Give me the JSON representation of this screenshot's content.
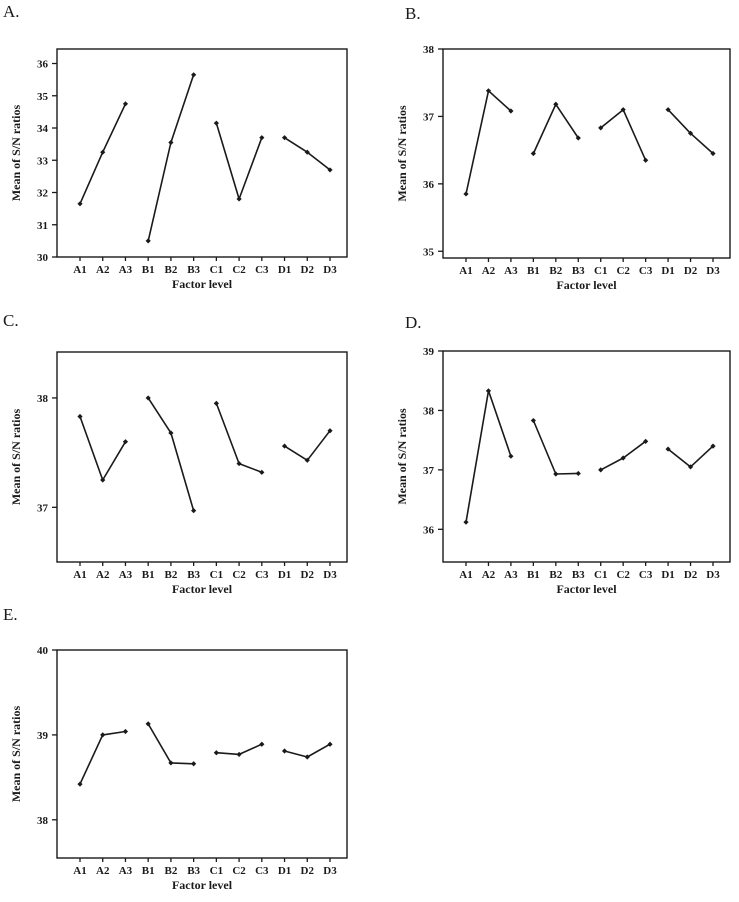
{
  "page": {
    "background_color": "#ffffff",
    "line_color": "#1a1a1a",
    "text_color": "#1a1a1a"
  },
  "chart_data": [
    {
      "panel_label": "A.",
      "type": "line",
      "title": "",
      "xlabel": "Factor level",
      "ylabel": "Mean of S/N ratios",
      "categories": [
        "A1",
        "A2",
        "A3",
        "B1",
        "B2",
        "B3",
        "C1",
        "C2",
        "C3",
        "D1",
        "D2",
        "D3"
      ],
      "series": [
        {
          "name": "Factor A",
          "levels": [
            "A1",
            "A2",
            "A3"
          ],
          "values": [
            31.65,
            33.25,
            34.75
          ]
        },
        {
          "name": "Factor B",
          "levels": [
            "B1",
            "B2",
            "B3"
          ],
          "values": [
            30.5,
            33.55,
            35.65
          ]
        },
        {
          "name": "Factor C",
          "levels": [
            "C1",
            "C2",
            "C3"
          ],
          "values": [
            34.15,
            31.8,
            33.7
          ]
        },
        {
          "name": "Factor D",
          "levels": [
            "D1",
            "D2",
            "D3"
          ],
          "values": [
            33.7,
            33.25,
            32.7
          ]
        }
      ],
      "yticks": [
        30,
        31,
        32,
        33,
        34,
        35,
        36
      ],
      "ylim": [
        30.0,
        36.45
      ],
      "grid": false,
      "legend": "none"
    },
    {
      "panel_label": "B.",
      "type": "line",
      "title": "",
      "xlabel": "Factor level",
      "ylabel": "Mean of S/N ratios",
      "categories": [
        "A1",
        "A2",
        "A3",
        "B1",
        "B2",
        "B3",
        "C1",
        "C2",
        "C3",
        "D1",
        "D2",
        "D3"
      ],
      "series": [
        {
          "name": "Factor A",
          "levels": [
            "A1",
            "A2",
            "A3"
          ],
          "values": [
            35.85,
            37.38,
            37.08
          ]
        },
        {
          "name": "Factor B",
          "levels": [
            "B1",
            "B2",
            "B3"
          ],
          "values": [
            36.45,
            37.18,
            36.68
          ]
        },
        {
          "name": "Factor C",
          "levels": [
            "C1",
            "C2",
            "C3"
          ],
          "values": [
            36.83,
            37.1,
            36.35
          ]
        },
        {
          "name": "Factor D",
          "levels": [
            "D1",
            "D2",
            "D3"
          ],
          "values": [
            37.1,
            36.75,
            36.45
          ]
        }
      ],
      "yticks": [
        35,
        36,
        37,
        38
      ],
      "ylim": [
        34.9,
        38.0
      ],
      "grid": false,
      "legend": "none"
    },
    {
      "panel_label": "C.",
      "type": "line",
      "title": "",
      "xlabel": "Factor level",
      "ylabel": "Mean of S/N ratios",
      "categories": [
        "A1",
        "A2",
        "A3",
        "B1",
        "B2",
        "B3",
        "C1",
        "C2",
        "C3",
        "D1",
        "D2",
        "D3"
      ],
      "series": [
        {
          "name": "Factor A",
          "levels": [
            "A1",
            "A2",
            "A3"
          ],
          "values": [
            37.83,
            37.25,
            37.6
          ]
        },
        {
          "name": "Factor B",
          "levels": [
            "B1",
            "B2",
            "B3"
          ],
          "values": [
            38.0,
            37.68,
            36.97
          ]
        },
        {
          "name": "Factor C",
          "levels": [
            "C1",
            "C2",
            "C3"
          ],
          "values": [
            37.95,
            37.4,
            37.32
          ]
        },
        {
          "name": "Factor D",
          "levels": [
            "D1",
            "D2",
            "D3"
          ],
          "values": [
            37.56,
            37.43,
            37.7
          ]
        }
      ],
      "yticks": [
        37,
        38
      ],
      "ylim": [
        36.5,
        38.42
      ],
      "grid": false,
      "legend": "none"
    },
    {
      "panel_label": "D.",
      "type": "line",
      "title": "",
      "xlabel": "Factor level",
      "ylabel": "Mean of S/N ratios",
      "categories": [
        "A1",
        "A2",
        "A3",
        "B1",
        "B2",
        "B3",
        "C1",
        "C2",
        "C3",
        "D1",
        "D2",
        "D3"
      ],
      "series": [
        {
          "name": "Factor A",
          "levels": [
            "A1",
            "A2",
            "A3"
          ],
          "values": [
            36.12,
            38.33,
            37.23
          ]
        },
        {
          "name": "Factor B",
          "levels": [
            "B1",
            "B2",
            "B3"
          ],
          "values": [
            37.83,
            36.93,
            36.94
          ]
        },
        {
          "name": "Factor C",
          "levels": [
            "C1",
            "C2",
            "C3"
          ],
          "values": [
            37.0,
            37.2,
            37.48
          ]
        },
        {
          "name": "Factor D",
          "levels": [
            "D1",
            "D2",
            "D3"
          ],
          "values": [
            37.35,
            37.05,
            37.4
          ]
        }
      ],
      "yticks": [
        36,
        37,
        38,
        39
      ],
      "ylim": [
        35.45,
        39.0
      ],
      "grid": false,
      "legend": "none"
    },
    {
      "panel_label": "E.",
      "type": "line",
      "title": "",
      "xlabel": "Factor level",
      "ylabel": "Mean of S/N ratios",
      "categories": [
        "A1",
        "A2",
        "A3",
        "B1",
        "B2",
        "B3",
        "C1",
        "C2",
        "C3",
        "D1",
        "D2",
        "D3"
      ],
      "series": [
        {
          "name": "Factor A",
          "levels": [
            "A1",
            "A2",
            "A3"
          ],
          "values": [
            38.42,
            39.0,
            39.04
          ]
        },
        {
          "name": "Factor B",
          "levels": [
            "B1",
            "B2",
            "B3"
          ],
          "values": [
            39.13,
            38.67,
            38.66
          ]
        },
        {
          "name": "Factor C",
          "levels": [
            "C1",
            "C2",
            "C3"
          ],
          "values": [
            38.79,
            38.77,
            38.89
          ]
        },
        {
          "name": "Factor D",
          "levels": [
            "D1",
            "D2",
            "D3"
          ],
          "values": [
            38.81,
            38.74,
            38.89
          ]
        }
      ],
      "yticks": [
        38,
        39,
        40
      ],
      "ylim": [
        37.55,
        40.0
      ],
      "grid": false,
      "legend": "none"
    }
  ]
}
